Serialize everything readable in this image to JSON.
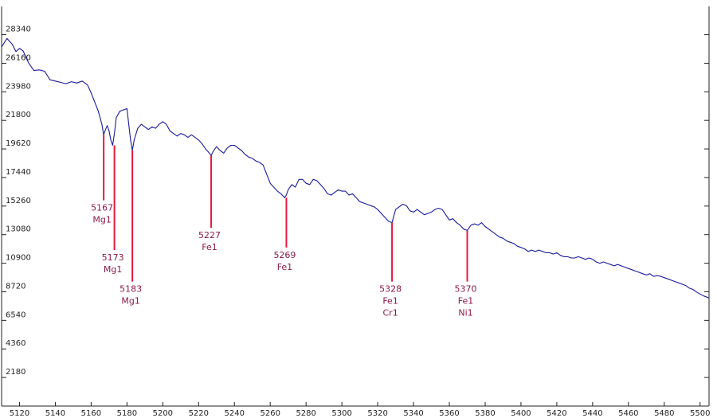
{
  "chart_data": {
    "type": "line",
    "title": "",
    "xlabel": "",
    "ylabel": "",
    "xlim": [
      5110,
      5505
    ],
    "ylim": [
      0,
      30500
    ],
    "x_ticks": [
      5120,
      5140,
      5160,
      5180,
      5200,
      5220,
      5240,
      5260,
      5280,
      5300,
      5320,
      5340,
      5360,
      5380,
      5400,
      5420,
      5440,
      5460,
      5480,
      5500
    ],
    "y_ticks": [
      2180,
      4360,
      6540,
      8720,
      10900,
      13080,
      15260,
      17440,
      19620,
      21800,
      23980,
      26160,
      28340
    ],
    "grid": false,
    "series": [
      {
        "color": "#1a1a9c",
        "points": [
          [
            5110,
            27400
          ],
          [
            5113,
            28050
          ],
          [
            5116,
            27600
          ],
          [
            5118,
            27050
          ],
          [
            5120,
            27300
          ],
          [
            5122,
            27100
          ],
          [
            5125,
            26200
          ],
          [
            5128,
            25600
          ],
          [
            5131,
            25650
          ],
          [
            5134,
            25550
          ],
          [
            5137,
            24900
          ],
          [
            5140,
            24800
          ],
          [
            5143,
            24700
          ],
          [
            5146,
            24600
          ],
          [
            5149,
            24750
          ],
          [
            5152,
            24650
          ],
          [
            5155,
            24800
          ],
          [
            5158,
            24500
          ],
          [
            5160,
            23900
          ],
          [
            5162,
            23200
          ],
          [
            5164,
            22500
          ],
          [
            5166,
            21500
          ],
          [
            5167,
            20700
          ],
          [
            5168,
            21100
          ],
          [
            5169,
            21400
          ],
          [
            5170,
            21000
          ],
          [
            5171,
            20300
          ],
          [
            5172,
            19900
          ],
          [
            5173,
            20800
          ],
          [
            5174,
            22000
          ],
          [
            5176,
            22500
          ],
          [
            5178,
            22600
          ],
          [
            5180,
            22700
          ],
          [
            5181,
            21500
          ],
          [
            5182,
            20300
          ],
          [
            5183,
            19500
          ],
          [
            5184,
            20300
          ],
          [
            5186,
            21200
          ],
          [
            5188,
            21500
          ],
          [
            5190,
            21300
          ],
          [
            5192,
            21100
          ],
          [
            5194,
            21300
          ],
          [
            5196,
            21200
          ],
          [
            5198,
            21500
          ],
          [
            5200,
            21700
          ],
          [
            5202,
            21500
          ],
          [
            5204,
            21000
          ],
          [
            5206,
            20800
          ],
          [
            5208,
            20600
          ],
          [
            5210,
            20800
          ],
          [
            5212,
            20700
          ],
          [
            5214,
            20500
          ],
          [
            5216,
            20700
          ],
          [
            5218,
            20500
          ],
          [
            5220,
            20300
          ],
          [
            5222,
            20000
          ],
          [
            5224,
            19600
          ],
          [
            5226,
            19300
          ],
          [
            5227,
            19100
          ],
          [
            5228,
            19400
          ],
          [
            5230,
            19800
          ],
          [
            5232,
            19500
          ],
          [
            5234,
            19300
          ],
          [
            5236,
            19700
          ],
          [
            5238,
            19900
          ],
          [
            5240,
            19900
          ],
          [
            5242,
            19700
          ],
          [
            5244,
            19500
          ],
          [
            5246,
            19200
          ],
          [
            5248,
            19000
          ],
          [
            5250,
            18900
          ],
          [
            5252,
            18700
          ],
          [
            5254,
            18600
          ],
          [
            5256,
            18400
          ],
          [
            5258,
            17700
          ],
          [
            5260,
            17000
          ],
          [
            5262,
            16700
          ],
          [
            5264,
            16400
          ],
          [
            5266,
            16200
          ],
          [
            5268,
            15900
          ],
          [
            5269,
            16100
          ],
          [
            5270,
            16500
          ],
          [
            5272,
            16900
          ],
          [
            5274,
            16700
          ],
          [
            5276,
            17300
          ],
          [
            5278,
            17300
          ],
          [
            5280,
            17000
          ],
          [
            5282,
            16900
          ],
          [
            5284,
            17300
          ],
          [
            5286,
            17200
          ],
          [
            5288,
            16900
          ],
          [
            5290,
            16600
          ],
          [
            5292,
            16200
          ],
          [
            5294,
            16100
          ],
          [
            5296,
            16300
          ],
          [
            5298,
            16500
          ],
          [
            5300,
            16400
          ],
          [
            5302,
            16400
          ],
          [
            5304,
            16100
          ],
          [
            5306,
            16200
          ],
          [
            5308,
            15900
          ],
          [
            5310,
            15600
          ],
          [
            5312,
            15500
          ],
          [
            5314,
            15400
          ],
          [
            5316,
            15300
          ],
          [
            5318,
            15200
          ],
          [
            5320,
            15000
          ],
          [
            5322,
            14700
          ],
          [
            5324,
            14400
          ],
          [
            5326,
            14100
          ],
          [
            5328,
            14000
          ],
          [
            5329,
            14500
          ],
          [
            5330,
            15000
          ],
          [
            5332,
            15200
          ],
          [
            5334,
            15400
          ],
          [
            5336,
            15300
          ],
          [
            5338,
            14900
          ],
          [
            5340,
            14800
          ],
          [
            5342,
            15000
          ],
          [
            5344,
            14800
          ],
          [
            5346,
            14600
          ],
          [
            5348,
            14700
          ],
          [
            5350,
            14800
          ],
          [
            5352,
            15000
          ],
          [
            5354,
            15100
          ],
          [
            5356,
            15000
          ],
          [
            5358,
            14600
          ],
          [
            5360,
            14200
          ],
          [
            5362,
            14300
          ],
          [
            5364,
            14000
          ],
          [
            5366,
            13800
          ],
          [
            5368,
            13500
          ],
          [
            5370,
            13400
          ],
          [
            5372,
            13800
          ],
          [
            5374,
            13900
          ],
          [
            5376,
            13800
          ],
          [
            5378,
            14000
          ],
          [
            5380,
            13700
          ],
          [
            5382,
            13500
          ],
          [
            5384,
            13300
          ],
          [
            5386,
            13100
          ],
          [
            5388,
            12900
          ],
          [
            5390,
            12800
          ],
          [
            5392,
            12600
          ],
          [
            5394,
            12500
          ],
          [
            5396,
            12400
          ],
          [
            5398,
            12200
          ],
          [
            5400,
            12100
          ],
          [
            5402,
            12000
          ],
          [
            5404,
            11800
          ],
          [
            5406,
            11900
          ],
          [
            5408,
            11800
          ],
          [
            5410,
            11900
          ],
          [
            5412,
            11800
          ],
          [
            5414,
            11700
          ],
          [
            5416,
            11700
          ],
          [
            5418,
            11600
          ],
          [
            5420,
            11700
          ],
          [
            5422,
            11500
          ],
          [
            5424,
            11400
          ],
          [
            5426,
            11400
          ],
          [
            5428,
            11300
          ],
          [
            5430,
            11300
          ],
          [
            5432,
            11400
          ],
          [
            5434,
            11300
          ],
          [
            5436,
            11200
          ],
          [
            5438,
            11300
          ],
          [
            5440,
            11200
          ],
          [
            5442,
            11000
          ],
          [
            5444,
            10900
          ],
          [
            5446,
            11000
          ],
          [
            5448,
            10900
          ],
          [
            5450,
            10800
          ],
          [
            5452,
            10700
          ],
          [
            5454,
            10800
          ],
          [
            5456,
            10700
          ],
          [
            5458,
            10600
          ],
          [
            5460,
            10500
          ],
          [
            5462,
            10400
          ],
          [
            5464,
            10300
          ],
          [
            5466,
            10200
          ],
          [
            5468,
            10100
          ],
          [
            5470,
            10000
          ],
          [
            5472,
            10100
          ],
          [
            5474,
            9900
          ],
          [
            5476,
            9950
          ],
          [
            5478,
            9900
          ],
          [
            5480,
            9800
          ],
          [
            5482,
            9700
          ],
          [
            5484,
            9600
          ],
          [
            5486,
            9500
          ],
          [
            5488,
            9400
          ],
          [
            5490,
            9300
          ],
          [
            5492,
            9200
          ],
          [
            5494,
            9000
          ],
          [
            5496,
            8900
          ],
          [
            5498,
            8700
          ],
          [
            5500,
            8550
          ],
          [
            5502,
            8400
          ],
          [
            5505,
            8250
          ]
        ]
      }
    ],
    "annotations": [
      {
        "x": 5167,
        "y_top": 20700,
        "y_bottom": 15700,
        "lines": [
          "5167",
          "Mg1"
        ]
      },
      {
        "x": 5173,
        "y_top": 19900,
        "y_bottom": 11900,
        "lines": [
          "5173",
          "Mg1"
        ]
      },
      {
        "x": 5183,
        "y_top": 19500,
        "y_bottom": 9500,
        "lines": [
          "5183",
          "Mg1"
        ]
      },
      {
        "x": 5227,
        "y_top": 19100,
        "y_bottom": 13600,
        "lines": [
          "5227",
          "Fe1"
        ]
      },
      {
        "x": 5269,
        "y_top": 15900,
        "y_bottom": 12100,
        "lines": [
          "5269",
          "Fe1"
        ]
      },
      {
        "x": 5328,
        "y_top": 14000,
        "y_bottom": 9500,
        "lines": [
          "5328",
          "Fe1",
          "Cr1"
        ]
      },
      {
        "x": 5370,
        "y_top": 13400,
        "y_bottom": 9500,
        "lines": [
          "5370",
          "Fe1",
          "Ni1"
        ]
      }
    ],
    "annotation_line_color": "#e8183c",
    "annotation_text_color": "#8b1a4a",
    "axis_color": "#222222"
  }
}
